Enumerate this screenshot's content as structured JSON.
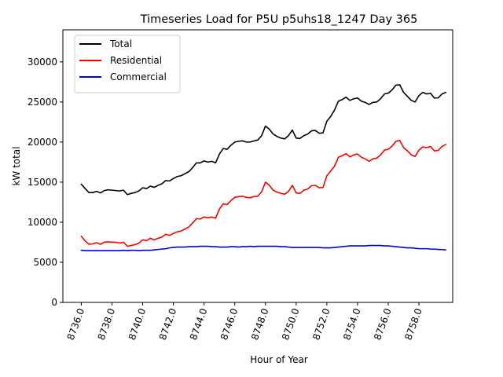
{
  "chart_data": {
    "type": "line",
    "title": "Timeseries Load for P5U p5uhs18_1247  Day 365",
    "xlabel": "Hour of Year",
    "ylabel": "kW total",
    "xlim": [
      8734.8,
      8760.2
    ],
    "ylim": [
      0,
      34000
    ],
    "x_ticks": [
      8736,
      8738,
      8740,
      8742,
      8744,
      8746,
      8748,
      8750,
      8752,
      8754,
      8756,
      8758
    ],
    "x_tick_labels": [
      "8736.0",
      "8738.0",
      "8740.0",
      "8742.0",
      "8744.0",
      "8746.0",
      "8748.0",
      "8750.0",
      "8752.0",
      "8754.0",
      "8756.0",
      "8758.0"
    ],
    "y_ticks": [
      0,
      5000,
      10000,
      15000,
      20000,
      25000,
      30000
    ],
    "y_tick_labels": [
      "0",
      "5000",
      "10000",
      "15000",
      "20000",
      "25000",
      "30000"
    ],
    "legend_position": "upper left",
    "x_start": 8736,
    "x_step": 0.25,
    "series": [
      {
        "name": "Total",
        "color": "#000000",
        "values": [
          14750,
          14200,
          13700,
          13700,
          13850,
          13650,
          13950,
          14050,
          14000,
          13950,
          13900,
          14000,
          13450,
          13600,
          13700,
          13900,
          14300,
          14200,
          14500,
          14350,
          14600,
          14800,
          15200,
          15150,
          15450,
          15700,
          15800,
          16050,
          16300,
          16800,
          17400,
          17400,
          17650,
          17500,
          17600,
          17400,
          18500,
          19200,
          19100,
          19600,
          20000,
          20100,
          20150,
          20000,
          20000,
          20150,
          20250,
          20800,
          22000,
          21600,
          21000,
          20700,
          20500,
          20400,
          20800,
          21500,
          20500,
          20450,
          20800,
          21000,
          21400,
          21450,
          21100,
          21150,
          22600,
          23200,
          24000,
          25100,
          25300,
          25600,
          25200,
          25400,
          25500,
          25100,
          24950,
          24700,
          24950,
          25000,
          25400,
          26000,
          26100,
          26500,
          27100,
          27150,
          26200,
          25700,
          25200,
          25000,
          25800,
          26200,
          26000,
          26100,
          25500,
          25500,
          26000,
          26200
        ]
      },
      {
        "name": "Residential",
        "color": "#ff0000",
        "values": [
          8250,
          7650,
          7250,
          7300,
          7450,
          7250,
          7500,
          7550,
          7500,
          7500,
          7400,
          7500,
          7000,
          7100,
          7200,
          7400,
          7800,
          7700,
          8000,
          7800,
          8000,
          8150,
          8500,
          8350,
          8600,
          8800,
          8900,
          9150,
          9400,
          9900,
          10450,
          10400,
          10650,
          10550,
          10650,
          10500,
          11650,
          12300,
          12200,
          12700,
          13100,
          13200,
          13250,
          13100,
          13050,
          13200,
          13250,
          13800,
          15000,
          14600,
          14000,
          13750,
          13600,
          13500,
          13850,
          14600,
          13650,
          13600,
          14000,
          14150,
          14550,
          14600,
          14300,
          14350,
          15800,
          16400,
          17000,
          18100,
          18300,
          18550,
          18150,
          18400,
          18500,
          18100,
          17900,
          17600,
          17900,
          18000,
          18400,
          19000,
          19100,
          19500,
          20100,
          20200,
          19300,
          18900,
          18400,
          18200,
          19000,
          19400,
          19300,
          19450,
          18900,
          18950,
          19450,
          19700
        ]
      },
      {
        "name": "Commercial",
        "color": "#0000cc",
        "values": [
          6500,
          6450,
          6450,
          6450,
          6450,
          6450,
          6450,
          6450,
          6450,
          6450,
          6450,
          6500,
          6450,
          6500,
          6500,
          6450,
          6500,
          6500,
          6500,
          6550,
          6600,
          6650,
          6700,
          6800,
          6850,
          6900,
          6900,
          6900,
          6950,
          6950,
          6950,
          7000,
          7000,
          7000,
          6950,
          6950,
          6900,
          6900,
          6900,
          6950,
          6950,
          6900,
          6950,
          6950,
          7000,
          6950,
          7000,
          7000,
          7000,
          7000,
          7000,
          7000,
          6950,
          6950,
          6900,
          6850,
          6850,
          6850,
          6850,
          6850,
          6850,
          6850,
          6850,
          6800,
          6800,
          6800,
          6850,
          6900,
          6950,
          7000,
          7050,
          7050,
          7050,
          7050,
          7050,
          7100,
          7100,
          7100,
          7100,
          7050,
          7050,
          7000,
          6950,
          6900,
          6850,
          6800,
          6800,
          6750,
          6700,
          6700,
          6700,
          6650,
          6650,
          6600,
          6600,
          6550
        ]
      }
    ]
  }
}
